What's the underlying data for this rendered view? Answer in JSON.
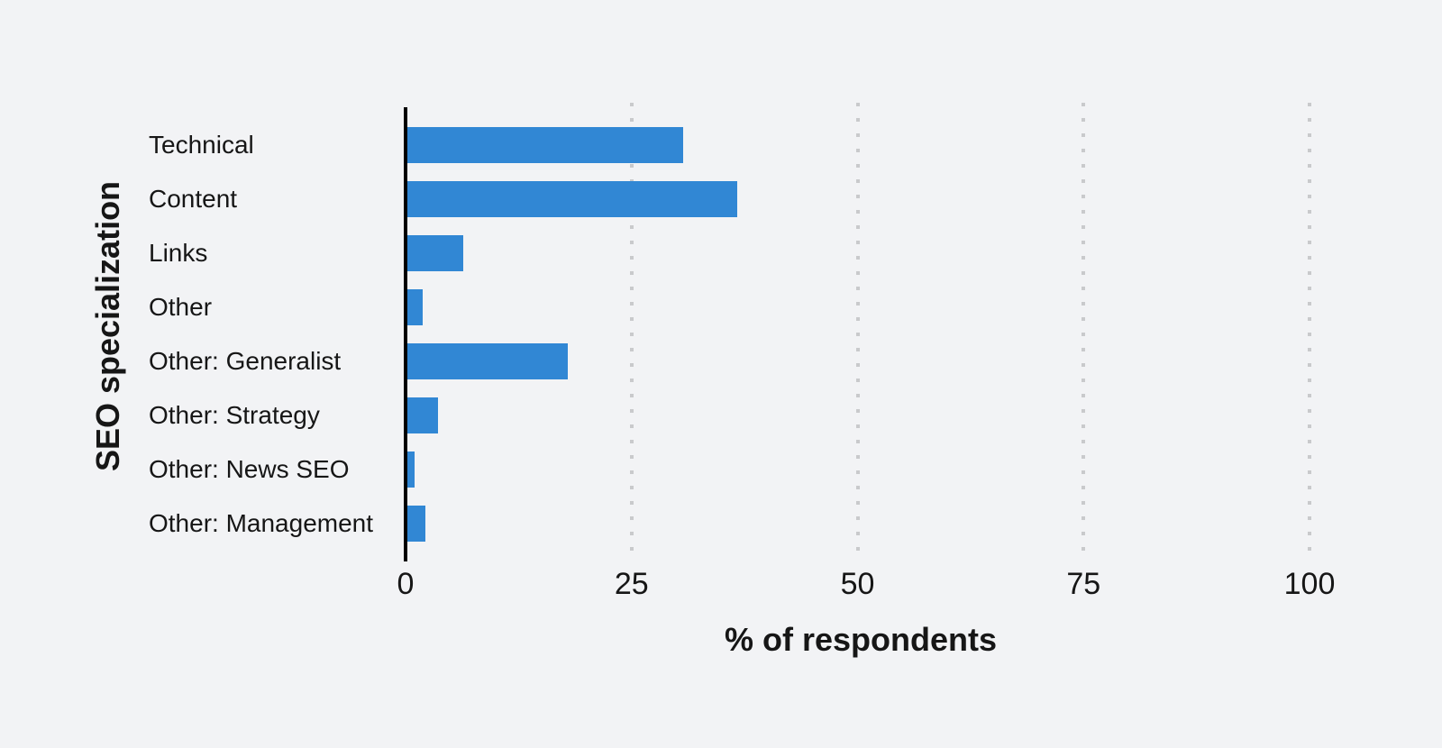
{
  "chart_data": {
    "type": "bar",
    "orientation": "horizontal",
    "categories": [
      "Technical",
      "Content",
      "Links",
      "Other",
      "Other: Generalist",
      "Other: Strategy",
      "Other: News SEO",
      "Other: Management"
    ],
    "values": [
      30.7,
      36.7,
      6.4,
      1.9,
      17.9,
      3.6,
      1.0,
      2.2
    ],
    "xlabel": "% of respondents",
    "ylabel": "SEO specialization",
    "xlim": [
      0,
      100
    ],
    "xticks": [
      0,
      25,
      50,
      75,
      100
    ],
    "xtick_labels": [
      "0",
      "25",
      "50",
      "75",
      "100"
    ],
    "grid": "vertical dotted gridlines at ticks above zero",
    "legend": "none",
    "title": ""
  },
  "colors": {
    "background": "#f2f3f5",
    "bar": "#3187d4",
    "axis_line": "#000000",
    "text": "#161616",
    "gridline_dot": "#c9cacc"
  }
}
